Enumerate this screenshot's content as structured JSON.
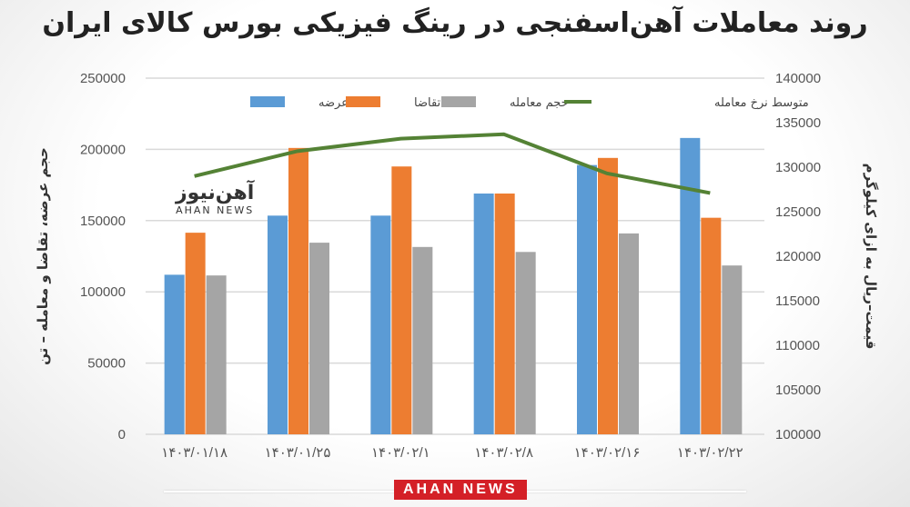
{
  "chart_data": {
    "type": "bar+line",
    "title": "روند معاملات آهن‌اسفنجی در رینگ فیزیکی بورس کالای ایران",
    "ylabel": "حجم عرضه، تقاضا و معامله – تن",
    "y2label": "قیمت–ریال به ازای کیلوگرم",
    "ylim": [
      0,
      250000
    ],
    "yticks": [
      "0",
      "50000",
      "100000",
      "150000",
      "200000",
      "250000"
    ],
    "y2lim": [
      100000,
      140000
    ],
    "y2ticks": [
      "100000",
      "105000",
      "110000",
      "115000",
      "120000",
      "125000",
      "130000",
      "135000",
      "140000"
    ],
    "grid": true,
    "legend": "top",
    "categories": [
      "۱۴۰۳/۰۱/۱۸",
      "۱۴۰۳/۰۱/۲۵",
      "۱۴۰۳/۰۲/۱",
      "۱۴۰۳/۰۲/۸",
      "۱۴۰۳/۰۲/۱۶",
      "۱۴۰۳/۰۲/۲۲"
    ],
    "series": [
      {
        "name": "عرضه",
        "type": "bar",
        "axis": "left",
        "color": "#5b9bd5",
        "values": [
          112000,
          153500,
          153500,
          169000,
          189000,
          208000
        ]
      },
      {
        "name": "تقاضا",
        "type": "bar",
        "axis": "left",
        "color": "#ed7d31",
        "values": [
          141500,
          201000,
          188000,
          169000,
          194000,
          152000
        ]
      },
      {
        "name": "حجم معامله",
        "type": "bar",
        "axis": "left",
        "color": "#a5a5a5",
        "values": [
          111500,
          134500,
          131500,
          128000,
          141000,
          118500
        ]
      },
      {
        "name": "متوسط نرخ معامله",
        "type": "line",
        "axis": "right",
        "color": "#548235",
        "values": [
          129000,
          131800,
          133200,
          133700,
          129300,
          127100
        ]
      }
    ]
  },
  "logo": {
    "fa": "آهن‌نیوز",
    "en": "AHAN NEWS"
  },
  "brand": "AHAN NEWS"
}
